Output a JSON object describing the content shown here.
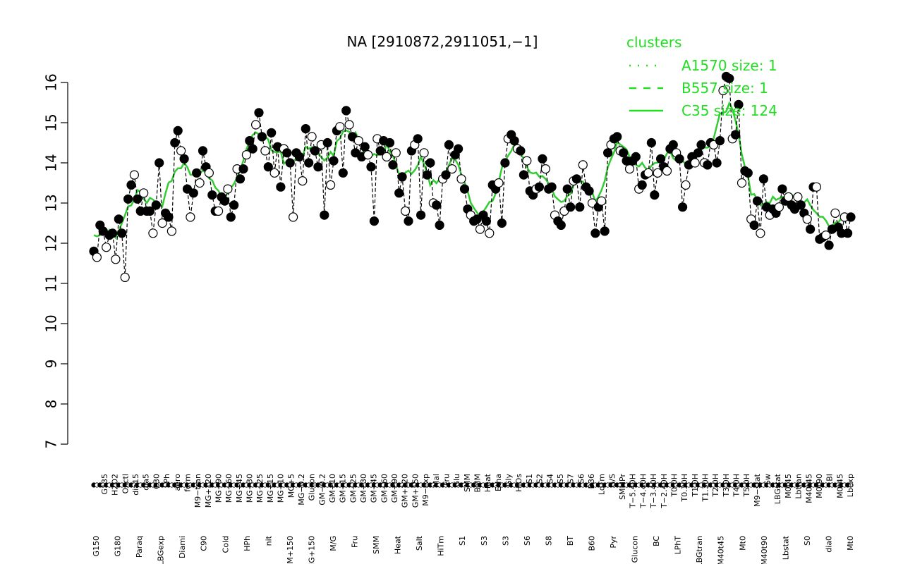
{
  "chart_data": {
    "type": "line",
    "title": "NA [2910872,2911051,−1]",
    "xlabel": "",
    "ylabel": "",
    "ylim": [
      7,
      16
    ],
    "yticks": [
      7,
      8,
      9,
      10,
      11,
      12,
      13,
      14,
      15,
      16
    ],
    "grid": false,
    "legend": {
      "title": "clusters",
      "placement": "top-right",
      "entries": [
        {
          "label": "A1570 size: 1",
          "style": "dotted"
        },
        {
          "label": "B557 size: 1",
          "style": "dashed"
        },
        {
          "label": "C35 size: 124",
          "style": "solid"
        }
      ]
    },
    "colors": {
      "line": "#33cc33",
      "legend": "#22dd22"
    },
    "x_tick_labels": {
      "top": [
        "G135",
        "H2O2",
        "Oxctl",
        "dia15",
        "dia5",
        "C30",
        "LPh",
        "aero",
        "ferm",
        "M9−tran",
        "MG+120",
        "MG+90",
        "MG+60",
        "MG+45",
        "MG+30",
        "MG+25",
        "MG+15",
        "MG+10",
        "MG+5",
        "MG−0.2",
        "Glucon",
        "GM−0.2",
        "GM+10",
        "GM+15",
        "GM+25",
        "GM+30",
        "GM+45",
        "GM+60",
        "GM+90",
        "GM+120",
        "GM+150",
        "M9−exp",
        "Mal",
        "Fru",
        "Glu",
        "SMM",
        "BMM",
        "Heat",
        "Etha",
        "Gly",
        "HiOs",
        "S1",
        "S2",
        "S4",
        "S5",
        "S7",
        "S6",
        "B36",
        "LoTm",
        "G/S",
        "SMMPr",
        "T−5.40H",
        "T−4.40H",
        "T−3.40H",
        "T−2.40H",
        "T0.0H",
        "T0.30H",
        "T1.0H",
        "T1.30H",
        "T2.0H",
        "T3.0H",
        "T4.0H",
        "T5.0H",
        "M9−stat",
        "Sw",
        "LBGstat",
        "M0t45",
        "Lbtran",
        "M40t45",
        "M0t90",
        "BI",
        "M0t45",
        "Lbexp"
      ],
      "bottom": [
        "G150",
        "G180",
        "Paraq",
        "LBGexp",
        "Diami",
        "C90",
        "Cold",
        "HPh",
        "nit",
        "GM+150",
        "MG+150",
        "M/G",
        "Fru",
        "SMM",
        "Heat",
        "Salt",
        "HiTm",
        "S1",
        "S3",
        "S3",
        "S6",
        "S8",
        "BT",
        "B60",
        "Pyr",
        "Glucon",
        "BC",
        "LPhT",
        "LBGtran",
        "M40t45",
        "Mt0",
        "M40t90",
        "Lbstat",
        "S0",
        "dia0",
        "Mt0"
      ]
    },
    "series": [
      {
        "style": "solid",
        "values": [
          11.8,
          11.65,
          12.45,
          12.3,
          11.9,
          12.2,
          12.25,
          11.6,
          12.6,
          12.25,
          11.15,
          13.1,
          13.45,
          13.7,
          13.1,
          12.8,
          13.25,
          12.8,
          12.8,
          12.25,
          12.95,
          14.0,
          12.5,
          12.75,
          12.65,
          12.3,
          14.5,
          14.8,
          14.3,
          14.1,
          13.35,
          12.65,
          13.25,
          13.75,
          13.5,
          14.3,
          13.9,
          13.75,
          13.2,
          12.8,
          12.8,
          13.15,
          13.05,
          13.35,
          12.65,
          12.95,
          13.85,
          13.6,
          13.85,
          14.2,
          14.55,
          14.35,
          14.95,
          15.25,
          14.65,
          14.3,
          13.9,
          14.75,
          13.75,
          14.4,
          13.4,
          14.35,
          14.25,
          14.0,
          12.65,
          14.25,
          14.15,
          13.55,
          14.85,
          14.0,
          14.65,
          14.3,
          13.9,
          14.45,
          12.7,
          14.5,
          13.45,
          14.05,
          14.8,
          14.9,
          13.75,
          15.3,
          14.95,
          14.65,
          14.25,
          14.55,
          14.15,
          14.4,
          14.2,
          13.9,
          12.55,
          14.6,
          14.3,
          14.55,
          14.15,
          14.5,
          13.95,
          14.25,
          13.25,
          13.65,
          12.8,
          12.55,
          14.3,
          14.45,
          14.6,
          12.7,
          14.25,
          13.7,
          14.0,
          13.0,
          12.95,
          12.45,
          13.6,
          13.7,
          14.45,
          13.85,
          14.2,
          14.35,
          13.6,
          13.35,
          12.85,
          12.7,
          12.55,
          12.6,
          12.35,
          12.7,
          12.55,
          12.25,
          13.45,
          13.35,
          13.5,
          12.5,
          14.0,
          14.6,
          14.7,
          14.55,
          14.35,
          14.3,
          13.7,
          14.05,
          13.3,
          13.2,
          13.35,
          13.4,
          14.1,
          13.85,
          13.35,
          13.4,
          12.7,
          12.55,
          12.45,
          12.8,
          13.35,
          12.9,
          13.55,
          13.6,
          12.9,
          13.95,
          13.4,
          13.3,
          13.0,
          12.25,
          12.9,
          13.05,
          12.3,
          14.25,
          14.45,
          14.6,
          14.65,
          14.3,
          14.25,
          14.05,
          13.85,
          14.05,
          14.15,
          13.35,
          13.45,
          13.7,
          13.75,
          14.5,
          13.2,
          13.75,
          14.1,
          13.9,
          13.8,
          14.35,
          14.45,
          14.25,
          14.1,
          12.9,
          13.45,
          13.95,
          14.15,
          14.0,
          14.25,
          14.45,
          14.0,
          13.95,
          14.5,
          14.45,
          14.0,
          14.55,
          15.8,
          16.15,
          16.1,
          14.6,
          14.7,
          15.45,
          13.5,
          13.8,
          13.75,
          12.6,
          12.45,
          13.05,
          12.25,
          13.6,
          12.9,
          12.7,
          12.85,
          12.75,
          12.9,
          13.35,
          13.05,
          13.15,
          12.95,
          12.85,
          13.15,
          12.95,
          12.75,
          12.6,
          12.35,
          13.4,
          13.4,
          12.1,
          12.15,
          12.2,
          11.95,
          12.35,
          12.75,
          12.4,
          12.25,
          12.65,
          12.25,
          12.65
        ]
      }
    ]
  }
}
